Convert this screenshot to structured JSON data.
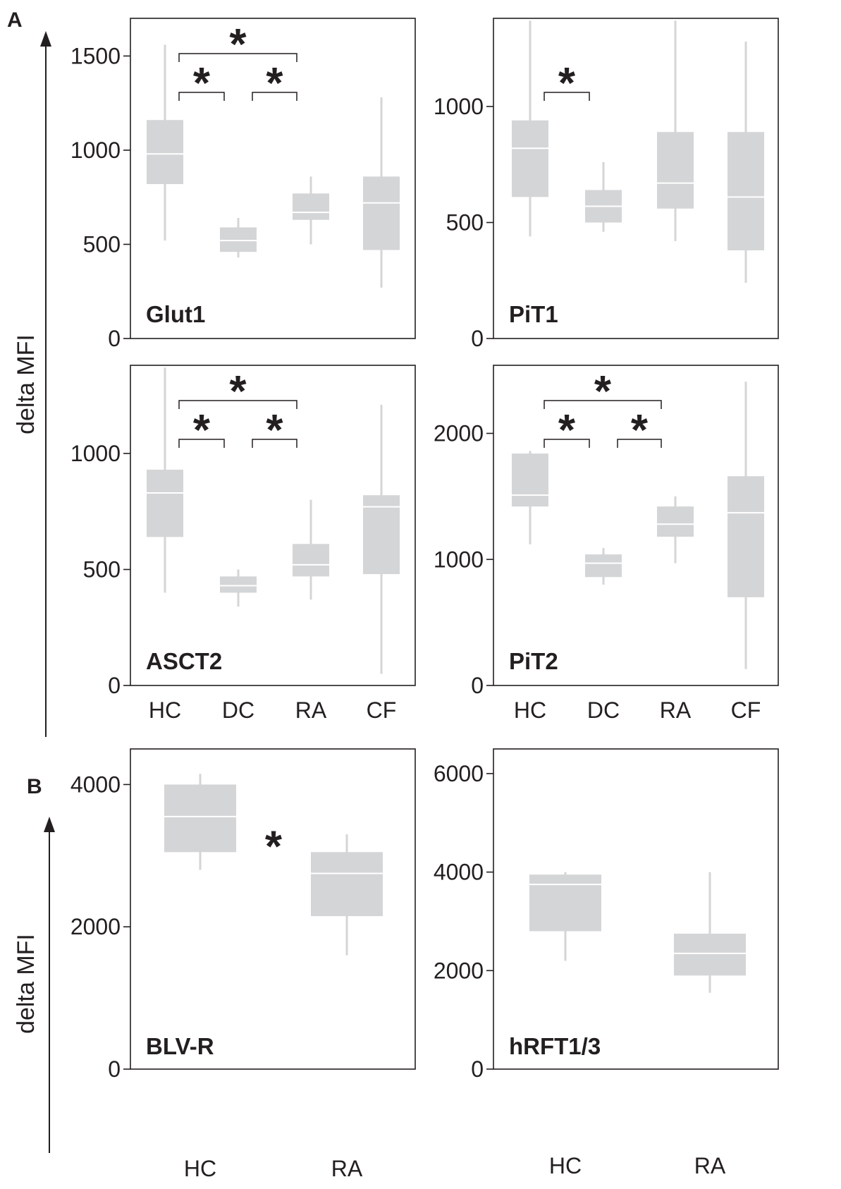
{
  "figure": {
    "panel_letters": [
      "A",
      "B"
    ],
    "y_axis_label": "delta MFI",
    "colors": {
      "box": "#d4d5d7",
      "median": "#ffffff",
      "text": "#231f20",
      "frame": "#231f20"
    }
  },
  "chart_data": [
    {
      "type": "boxplot",
      "panel": "A",
      "label": "Glut1",
      "categories": [
        "HC",
        "DC",
        "RA",
        "CF"
      ],
      "ylim": [
        0,
        1700
      ],
      "yticks": [
        0,
        500,
        1000,
        1500
      ],
      "boxes": [
        {
          "min": 520,
          "q1": 820,
          "median": 980,
          "q3": 1160,
          "max": 1560
        },
        {
          "min": 430,
          "q1": 460,
          "median": 520,
          "q3": 590,
          "max": 640
        },
        {
          "min": 500,
          "q1": 630,
          "median": 670,
          "q3": 770,
          "max": 860
        },
        {
          "min": 270,
          "q1": 470,
          "median": 720,
          "q3": 860,
          "max": 1280
        }
      ],
      "significance": [
        {
          "from": 0,
          "to": 2,
          "label": "*",
          "level": 2
        },
        {
          "from": 0,
          "to": 1,
          "label": "*",
          "level": 1
        },
        {
          "from": 1,
          "to": 2,
          "label": "*",
          "level": 1
        }
      ]
    },
    {
      "type": "boxplot",
      "panel": "A",
      "label": "PiT1",
      "categories": [
        "HC",
        "DC",
        "RA",
        "CF"
      ],
      "ylim": [
        0,
        1380
      ],
      "yticks": [
        0,
        500,
        1000
      ],
      "boxes": [
        {
          "min": 440,
          "q1": 610,
          "median": 820,
          "q3": 940,
          "max": 1370
        },
        {
          "min": 460,
          "q1": 500,
          "median": 570,
          "q3": 640,
          "max": 760
        },
        {
          "min": 420,
          "q1": 560,
          "median": 670,
          "q3": 890,
          "max": 1370
        },
        {
          "min": 240,
          "q1": 380,
          "median": 610,
          "q3": 890,
          "max": 1280
        }
      ],
      "significance": [
        {
          "from": 0,
          "to": 1,
          "label": "*",
          "level": 1
        }
      ]
    },
    {
      "type": "boxplot",
      "panel": "A",
      "label": "ASCT2",
      "categories": [
        "HC",
        "DC",
        "RA",
        "CF"
      ],
      "ylim": [
        0,
        1380
      ],
      "yticks": [
        0,
        500,
        1000
      ],
      "boxes": [
        {
          "min": 400,
          "q1": 640,
          "median": 830,
          "q3": 930,
          "max": 1370
        },
        {
          "min": 340,
          "q1": 400,
          "median": 430,
          "q3": 470,
          "max": 500
        },
        {
          "min": 370,
          "q1": 470,
          "median": 520,
          "q3": 610,
          "max": 800
        },
        {
          "min": 50,
          "q1": 480,
          "median": 770,
          "q3": 820,
          "max": 1210
        }
      ],
      "significance": [
        {
          "from": 0,
          "to": 2,
          "label": "*",
          "level": 2
        },
        {
          "from": 0,
          "to": 1,
          "label": "*",
          "level": 1
        },
        {
          "from": 1,
          "to": 2,
          "label": "*",
          "level": 1
        }
      ]
    },
    {
      "type": "boxplot",
      "panel": "A",
      "label": "PiT2",
      "categories": [
        "HC",
        "DC",
        "RA",
        "CF"
      ],
      "ylim": [
        0,
        2540
      ],
      "yticks": [
        0,
        1000,
        2000
      ],
      "boxes": [
        {
          "min": 1120,
          "q1": 1420,
          "median": 1510,
          "q3": 1840,
          "max": 1860
        },
        {
          "min": 800,
          "q1": 860,
          "median": 970,
          "q3": 1040,
          "max": 1090
        },
        {
          "min": 970,
          "q1": 1180,
          "median": 1280,
          "q3": 1420,
          "max": 1500
        },
        {
          "min": 130,
          "q1": 700,
          "median": 1370,
          "q3": 1660,
          "max": 2410
        }
      ],
      "significance": [
        {
          "from": 0,
          "to": 2,
          "label": "*",
          "level": 2
        },
        {
          "from": 0,
          "to": 1,
          "label": "*",
          "level": 1
        },
        {
          "from": 1,
          "to": 2,
          "label": "*",
          "level": 1
        }
      ]
    },
    {
      "type": "boxplot",
      "panel": "B",
      "label": "BLV-R",
      "categories": [
        "HC",
        "RA"
      ],
      "ylim": [
        0,
        4500
      ],
      "yticks": [
        0,
        2000,
        4000
      ],
      "boxes": [
        {
          "min": 2800,
          "q1": 3050,
          "median": 3550,
          "q3": 4000,
          "max": 4150
        },
        {
          "min": 1600,
          "q1": 2150,
          "median": 2750,
          "q3": 3050,
          "max": 3300
        }
      ],
      "significance_label": "*"
    },
    {
      "type": "boxplot",
      "panel": "B",
      "label": "hRFT1/3",
      "categories": [
        "HC",
        "RA"
      ],
      "ylim": [
        0,
        6500
      ],
      "yticks": [
        0,
        2000,
        4000,
        6000
      ],
      "boxes": [
        {
          "min": 2200,
          "q1": 2800,
          "median": 3750,
          "q3": 3950,
          "max": 4000
        },
        {
          "min": 1550,
          "q1": 1900,
          "median": 2350,
          "q3": 2750,
          "max": 4000
        }
      ]
    }
  ]
}
